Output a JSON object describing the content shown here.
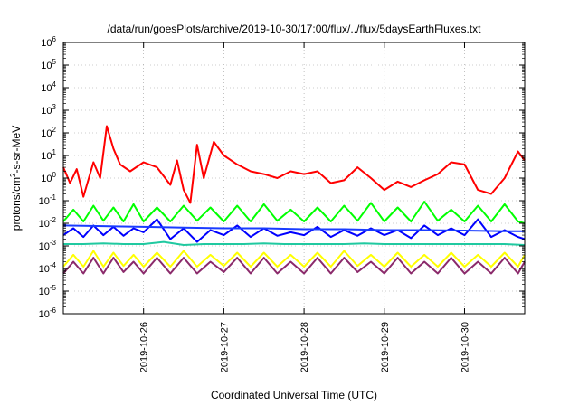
{
  "chart_data": {
    "type": "line",
    "title": "/data/run/goesPlots/archive/2019-10-30/17:00/flux/../flux/5daysEarthFluxes.txt",
    "xlabel": "Coordinated Universal Time (UTC)",
    "ylabel": {
      "base": "protons/cm",
      "exp": "2",
      "rest": "-s-sr-MeV"
    },
    "yscale": "log",
    "ylim": [
      1e-06,
      1000000.0
    ],
    "xlim": [
      "2019-10-25T00:00",
      "2019-10-30T18:00"
    ],
    "grid": true,
    "legend": "none",
    "y_tick_labels": [
      {
        "value": 1e-06,
        "base": "10",
        "exp": "-6"
      },
      {
        "value": 1e-05,
        "base": "10",
        "exp": "-5"
      },
      {
        "value": 0.0001,
        "base": "10",
        "exp": "-4"
      },
      {
        "value": 0.001,
        "base": "10",
        "exp": "-3"
      },
      {
        "value": 0.01,
        "base": "10",
        "exp": "-2"
      },
      {
        "value": 0.1,
        "base": "10",
        "exp": "-1"
      },
      {
        "value": 1,
        "base": "10",
        "exp": "0"
      },
      {
        "value": 10,
        "base": "10",
        "exp": "1"
      },
      {
        "value": 100,
        "base": "10",
        "exp": "2"
      },
      {
        "value": 1000,
        "base": "10",
        "exp": "3"
      },
      {
        "value": 10000,
        "base": "10",
        "exp": "4"
      },
      {
        "value": 100000,
        "base": "10",
        "exp": "5"
      },
      {
        "value": 1000000,
        "base": "10",
        "exp": "6"
      }
    ],
    "x_tick_labels": [
      {
        "date": "2019-10-26",
        "label": "2019-10-26"
      },
      {
        "date": "2019-10-27",
        "label": "2019-10-27"
      },
      {
        "date": "2019-10-28",
        "label": "2019-10-28"
      },
      {
        "date": "2019-10-29",
        "label": "2019-10-29"
      },
      {
        "date": "2019-10-30",
        "label": "2019-10-30"
      }
    ],
    "series": [
      {
        "color": "#ff0000",
        "points": [
          [
            "2019-10-25T00:00",
            3
          ],
          [
            "2019-10-25T02:00",
            0.6
          ],
          [
            "2019-10-25T04:00",
            2.5
          ],
          [
            "2019-10-25T06:00",
            0.15
          ],
          [
            "2019-10-25T09:00",
            5
          ],
          [
            "2019-10-25T11:00",
            1
          ],
          [
            "2019-10-25T13:00",
            200
          ],
          [
            "2019-10-25T15:00",
            20
          ],
          [
            "2019-10-25T17:00",
            4
          ],
          [
            "2019-10-25T20:00",
            2
          ],
          [
            "2019-10-26T00:00",
            5
          ],
          [
            "2019-10-26T04:00",
            3
          ],
          [
            "2019-10-26T08:00",
            0.5
          ],
          [
            "2019-10-26T10:00",
            6
          ],
          [
            "2019-10-26T12:00",
            0.3
          ],
          [
            "2019-10-26T14:00",
            0.08
          ],
          [
            "2019-10-26T16:00",
            30
          ],
          [
            "2019-10-26T18:00",
            1
          ],
          [
            "2019-10-26T21:00",
            40
          ],
          [
            "2019-10-27T00:00",
            10
          ],
          [
            "2019-10-27T04:00",
            4
          ],
          [
            "2019-10-27T08:00",
            2
          ],
          [
            "2019-10-27T12:00",
            1.5
          ],
          [
            "2019-10-27T16:00",
            1
          ],
          [
            "2019-10-27T20:00",
            2
          ],
          [
            "2019-10-28T00:00",
            1.5
          ],
          [
            "2019-10-28T04:00",
            2
          ],
          [
            "2019-10-28T08:00",
            0.6
          ],
          [
            "2019-10-28T12:00",
            0.8
          ],
          [
            "2019-10-28T16:00",
            3
          ],
          [
            "2019-10-28T20:00",
            1
          ],
          [
            "2019-10-29T00:00",
            0.3
          ],
          [
            "2019-10-29T04:00",
            0.7
          ],
          [
            "2019-10-29T08:00",
            0.4
          ],
          [
            "2019-10-29T12:00",
            0.8
          ],
          [
            "2019-10-29T16:00",
            1.5
          ],
          [
            "2019-10-29T20:00",
            5
          ],
          [
            "2019-10-30T00:00",
            4
          ],
          [
            "2019-10-30T04:00",
            0.3
          ],
          [
            "2019-10-30T08:00",
            0.2
          ],
          [
            "2019-10-30T12:00",
            1
          ],
          [
            "2019-10-30T16:00",
            15
          ],
          [
            "2019-10-30T18:00",
            6
          ]
        ]
      },
      {
        "color": "#00ff00",
        "points": [
          [
            "2019-10-25T00:00",
            0.012
          ],
          [
            "2019-10-25T03:00",
            0.04
          ],
          [
            "2019-10-25T06:00",
            0.012
          ],
          [
            "2019-10-25T09:00",
            0.06
          ],
          [
            "2019-10-25T12:00",
            0.013
          ],
          [
            "2019-10-25T15:00",
            0.05
          ],
          [
            "2019-10-25T18:00",
            0.012
          ],
          [
            "2019-10-25T21:00",
            0.07
          ],
          [
            "2019-10-26T00:00",
            0.012
          ],
          [
            "2019-10-26T04:00",
            0.05
          ],
          [
            "2019-10-26T08:00",
            0.012
          ],
          [
            "2019-10-26T12:00",
            0.06
          ],
          [
            "2019-10-26T16:00",
            0.013
          ],
          [
            "2019-10-26T20:00",
            0.05
          ],
          [
            "2019-10-27T00:00",
            0.012
          ],
          [
            "2019-10-27T04:00",
            0.06
          ],
          [
            "2019-10-27T08:00",
            0.012
          ],
          [
            "2019-10-27T12:00",
            0.07
          ],
          [
            "2019-10-27T16:00",
            0.013
          ],
          [
            "2019-10-27T20:00",
            0.04
          ],
          [
            "2019-10-28T00:00",
            0.012
          ],
          [
            "2019-10-28T04:00",
            0.05
          ],
          [
            "2019-10-28T08:00",
            0.012
          ],
          [
            "2019-10-28T12:00",
            0.06
          ],
          [
            "2019-10-28T16:00",
            0.013
          ],
          [
            "2019-10-28T20:00",
            0.08
          ],
          [
            "2019-10-29T00:00",
            0.012
          ],
          [
            "2019-10-29T04:00",
            0.05
          ],
          [
            "2019-10-29T08:00",
            0.012
          ],
          [
            "2019-10-29T12:00",
            0.09
          ],
          [
            "2019-10-29T16:00",
            0.013
          ],
          [
            "2019-10-29T20:00",
            0.04
          ],
          [
            "2019-10-30T00:00",
            0.012
          ],
          [
            "2019-10-30T04:00",
            0.06
          ],
          [
            "2019-10-30T08:00",
            0.012
          ],
          [
            "2019-10-30T12:00",
            0.07
          ],
          [
            "2019-10-30T16:00",
            0.012
          ],
          [
            "2019-10-30T18:00",
            0.01
          ]
        ]
      },
      {
        "color": "#0000ff",
        "points": [
          [
            "2019-10-25T00:00",
            0.003
          ],
          [
            "2019-10-25T03:00",
            0.006
          ],
          [
            "2019-10-25T06:00",
            0.0025
          ],
          [
            "2019-10-25T09:00",
            0.008
          ],
          [
            "2019-10-25T12:00",
            0.003
          ],
          [
            "2019-10-25T15:00",
            0.007
          ],
          [
            "2019-10-25T18:00",
            0.0028
          ],
          [
            "2019-10-25T21:00",
            0.006
          ],
          [
            "2019-10-26T00:00",
            0.004
          ],
          [
            "2019-10-26T04:00",
            0.015
          ],
          [
            "2019-10-26T08:00",
            0.002
          ],
          [
            "2019-10-26T12:00",
            0.006
          ],
          [
            "2019-10-26T16:00",
            0.0015
          ],
          [
            "2019-10-26T20:00",
            0.005
          ],
          [
            "2019-10-27T00:00",
            0.003
          ],
          [
            "2019-10-27T04:00",
            0.008
          ],
          [
            "2019-10-27T08:00",
            0.0025
          ],
          [
            "2019-10-27T12:00",
            0.006
          ],
          [
            "2019-10-27T16:00",
            0.0028
          ],
          [
            "2019-10-27T20:00",
            0.004
          ],
          [
            "2019-10-28T00:00",
            0.003
          ],
          [
            "2019-10-28T04:00",
            0.007
          ],
          [
            "2019-10-28T08:00",
            0.0025
          ],
          [
            "2019-10-28T12:00",
            0.005
          ],
          [
            "2019-10-28T16:00",
            0.0028
          ],
          [
            "2019-10-28T20:00",
            0.006
          ],
          [
            "2019-10-29T00:00",
            0.003
          ],
          [
            "2019-10-29T04:00",
            0.005
          ],
          [
            "2019-10-29T08:00",
            0.0022
          ],
          [
            "2019-10-29T12:00",
            0.008
          ],
          [
            "2019-10-29T16:00",
            0.003
          ],
          [
            "2019-10-29T20:00",
            0.006
          ],
          [
            "2019-10-30T00:00",
            0.003
          ],
          [
            "2019-10-30T04:00",
            0.015
          ],
          [
            "2019-10-30T08:00",
            0.0025
          ],
          [
            "2019-10-30T12:00",
            0.005
          ],
          [
            "2019-10-30T16:00",
            0.0025
          ],
          [
            "2019-10-30T18:00",
            0.002
          ]
        ]
      },
      {
        "color": "#1a3cff",
        "points": [
          [
            "2019-10-25T00:00",
            0.008
          ],
          [
            "2019-10-25T12:00",
            0.0075
          ],
          [
            "2019-10-26T00:00",
            0.007
          ],
          [
            "2019-10-26T12:00",
            0.0065
          ],
          [
            "2019-10-27T00:00",
            0.006
          ],
          [
            "2019-10-27T12:00",
            0.006
          ],
          [
            "2019-10-28T00:00",
            0.0055
          ],
          [
            "2019-10-28T12:00",
            0.0055
          ],
          [
            "2019-10-29T00:00",
            0.005
          ],
          [
            "2019-10-29T12:00",
            0.005
          ],
          [
            "2019-10-30T00:00",
            0.0048
          ],
          [
            "2019-10-30T12:00",
            0.0045
          ],
          [
            "2019-10-30T18:00",
            0.0045
          ]
        ]
      },
      {
        "color": "#20c9a0",
        "points": [
          [
            "2019-10-25T00:00",
            0.0012
          ],
          [
            "2019-10-25T06:00",
            0.0012
          ],
          [
            "2019-10-25T12:00",
            0.0013
          ],
          [
            "2019-10-25T18:00",
            0.0012
          ],
          [
            "2019-10-26T00:00",
            0.0012
          ],
          [
            "2019-10-26T06:00",
            0.0015
          ],
          [
            "2019-10-26T12:00",
            0.0011
          ],
          [
            "2019-10-26T18:00",
            0.0012
          ],
          [
            "2019-10-27T00:00",
            0.0012
          ],
          [
            "2019-10-27T06:00",
            0.0012
          ],
          [
            "2019-10-27T12:00",
            0.0013
          ],
          [
            "2019-10-27T18:00",
            0.0012
          ],
          [
            "2019-10-28T00:00",
            0.0012
          ],
          [
            "2019-10-28T06:00",
            0.0012
          ],
          [
            "2019-10-28T12:00",
            0.0012
          ],
          [
            "2019-10-28T18:00",
            0.0013
          ],
          [
            "2019-10-29T00:00",
            0.0012
          ],
          [
            "2019-10-29T06:00",
            0.0012
          ],
          [
            "2019-10-29T12:00",
            0.0012
          ],
          [
            "2019-10-29T18:00",
            0.0012
          ],
          [
            "2019-10-30T00:00",
            0.0012
          ],
          [
            "2019-10-30T06:00",
            0.0012
          ],
          [
            "2019-10-30T12:00",
            0.0012
          ],
          [
            "2019-10-30T18:00",
            0.0011
          ]
        ]
      },
      {
        "color": "#ffff00",
        "points": [
          [
            "2019-10-25T00:00",
            0.00012
          ],
          [
            "2019-10-25T03:00",
            0.0004
          ],
          [
            "2019-10-25T06:00",
            0.00012
          ],
          [
            "2019-10-25T09:00",
            0.0006
          ],
          [
            "2019-10-25T12:00",
            0.00012
          ],
          [
            "2019-10-25T15:00",
            0.0005
          ],
          [
            "2019-10-25T18:00",
            0.00013
          ],
          [
            "2019-10-25T21:00",
            0.0004
          ],
          [
            "2019-10-26T00:00",
            0.00012
          ],
          [
            "2019-10-26T04:00",
            0.0005
          ],
          [
            "2019-10-26T08:00",
            0.00012
          ],
          [
            "2019-10-26T12:00",
            0.0006
          ],
          [
            "2019-10-26T16:00",
            0.00012
          ],
          [
            "2019-10-26T20:00",
            0.0004
          ],
          [
            "2019-10-27T00:00",
            0.00013
          ],
          [
            "2019-10-27T04:00",
            0.0005
          ],
          [
            "2019-10-27T08:00",
            0.00012
          ],
          [
            "2019-10-27T12:00",
            0.0005
          ],
          [
            "2019-10-27T16:00",
            0.00012
          ],
          [
            "2019-10-27T20:00",
            0.0004
          ],
          [
            "2019-10-28T00:00",
            0.00012
          ],
          [
            "2019-10-28T04:00",
            0.0005
          ],
          [
            "2019-10-28T08:00",
            0.00012
          ],
          [
            "2019-10-28T12:00",
            0.0006
          ],
          [
            "2019-10-28T16:00",
            0.00013
          ],
          [
            "2019-10-28T20:00",
            0.0004
          ],
          [
            "2019-10-29T00:00",
            0.00012
          ],
          [
            "2019-10-29T04:00",
            0.0005
          ],
          [
            "2019-10-29T08:00",
            0.00012
          ],
          [
            "2019-10-29T12:00",
            0.0004
          ],
          [
            "2019-10-29T16:00",
            0.00012
          ],
          [
            "2019-10-29T20:00",
            0.0005
          ],
          [
            "2019-10-30T00:00",
            0.00012
          ],
          [
            "2019-10-30T04:00",
            0.0004
          ],
          [
            "2019-10-30T08:00",
            0.00012
          ],
          [
            "2019-10-30T12:00",
            0.0005
          ],
          [
            "2019-10-30T16:00",
            0.00012
          ],
          [
            "2019-10-30T18:00",
            0.0004
          ]
        ]
      },
      {
        "color": "#8b2a6b",
        "points": [
          [
            "2019-10-25T00:00",
            6e-05
          ],
          [
            "2019-10-25T03:00",
            0.0002
          ],
          [
            "2019-10-25T06:00",
            6e-05
          ],
          [
            "2019-10-25T09:00",
            0.0003
          ],
          [
            "2019-10-25T12:00",
            6e-05
          ],
          [
            "2019-10-25T15:00",
            0.0003
          ],
          [
            "2019-10-25T18:00",
            7e-05
          ],
          [
            "2019-10-25T21:00",
            0.0002
          ],
          [
            "2019-10-26T00:00",
            6e-05
          ],
          [
            "2019-10-26T04:00",
            0.0003
          ],
          [
            "2019-10-26T08:00",
            6e-05
          ],
          [
            "2019-10-26T12:00",
            0.0003
          ],
          [
            "2019-10-26T16:00",
            6e-05
          ],
          [
            "2019-10-26T20:00",
            0.0002
          ],
          [
            "2019-10-27T00:00",
            7e-05
          ],
          [
            "2019-10-27T04:00",
            0.0003
          ],
          [
            "2019-10-27T08:00",
            6e-05
          ],
          [
            "2019-10-27T12:00",
            0.0003
          ],
          [
            "2019-10-27T16:00",
            6e-05
          ],
          [
            "2019-10-27T20:00",
            0.0002
          ],
          [
            "2019-10-28T00:00",
            6e-05
          ],
          [
            "2019-10-28T04:00",
            0.0003
          ],
          [
            "2019-10-28T08:00",
            6e-05
          ],
          [
            "2019-10-28T12:00",
            0.0003
          ],
          [
            "2019-10-28T16:00",
            7e-05
          ],
          [
            "2019-10-28T20:00",
            0.0002
          ],
          [
            "2019-10-29T00:00",
            6e-05
          ],
          [
            "2019-10-29T04:00",
            0.0003
          ],
          [
            "2019-10-29T08:00",
            6e-05
          ],
          [
            "2019-10-29T12:00",
            0.0002
          ],
          [
            "2019-10-29T16:00",
            6e-05
          ],
          [
            "2019-10-29T20:00",
            0.0003
          ],
          [
            "2019-10-30T00:00",
            6e-05
          ],
          [
            "2019-10-30T04:00",
            0.0002
          ],
          [
            "2019-10-30T08:00",
            6e-05
          ],
          [
            "2019-10-30T12:00",
            0.0003
          ],
          [
            "2019-10-30T16:00",
            6e-05
          ],
          [
            "2019-10-30T18:00",
            0.0002
          ]
        ]
      }
    ]
  }
}
